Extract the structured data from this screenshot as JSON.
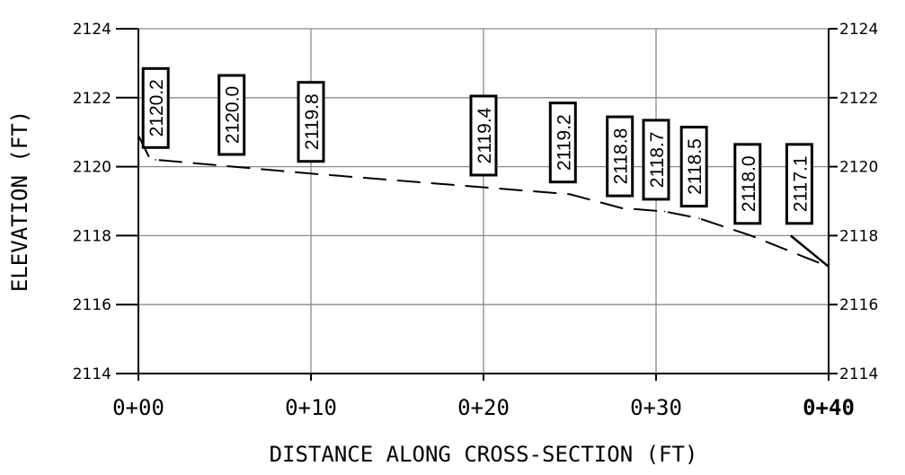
{
  "chart_data": {
    "type": "line",
    "xlabel": "DISTANCE ALONG CROSS-SECTION (FT)",
    "ylabel": "ELEVATION (FT)",
    "xlim": [
      0,
      40
    ],
    "ylim": [
      2114,
      2124
    ],
    "x_ticks": [
      {
        "value": 0,
        "label": "0+00",
        "bold": false
      },
      {
        "value": 10,
        "label": "0+10",
        "bold": false
      },
      {
        "value": 20,
        "label": "0+20",
        "bold": false
      },
      {
        "value": 30,
        "label": "0+30",
        "bold": false
      },
      {
        "value": 40,
        "label": "0+40",
        "bold": true
      }
    ],
    "y_ticks": [
      2114,
      2116,
      2118,
      2120,
      2122,
      2124
    ],
    "grid": true,
    "line_style": "dashed",
    "series": [
      {
        "points": [
          {
            "x": 0,
            "y": 2120.9
          },
          {
            "x": 0.6,
            "y": 2120.3
          },
          {
            "x": 1,
            "y": 2120.2
          },
          {
            "x": 5.5,
            "y": 2120.0
          },
          {
            "x": 10,
            "y": 2119.8
          },
          {
            "x": 20,
            "y": 2119.4
          },
          {
            "x": 25,
            "y": 2119.2
          },
          {
            "x": 28,
            "y": 2118.8
          },
          {
            "x": 30.5,
            "y": 2118.7
          },
          {
            "x": 32.5,
            "y": 2118.5
          },
          {
            "x": 35.5,
            "y": 2118.0
          },
          {
            "x": 40,
            "y": 2117.1
          }
        ]
      }
    ],
    "point_labels": [
      {
        "text": "2120.2",
        "x": 1.0,
        "y": 2121.7
      },
      {
        "text": "2120.0",
        "x": 5.4,
        "y": 2121.5
      },
      {
        "text": "2119.8",
        "x": 10.0,
        "y": 2121.3
      },
      {
        "text": "2119.4",
        "x": 20.0,
        "y": 2120.9
      },
      {
        "text": "2119.2",
        "x": 24.6,
        "y": 2120.7
      },
      {
        "text": "2118.8",
        "x": 27.9,
        "y": 2120.3
      },
      {
        "text": "2118.7",
        "x": 30.0,
        "y": 2120.2
      },
      {
        "text": "2118.5",
        "x": 32.2,
        "y": 2120.0
      },
      {
        "text": "2118.0",
        "x": 35.3,
        "y": 2119.5
      },
      {
        "text": "2117.1",
        "x": 38.3,
        "y": 2119.5
      }
    ]
  }
}
